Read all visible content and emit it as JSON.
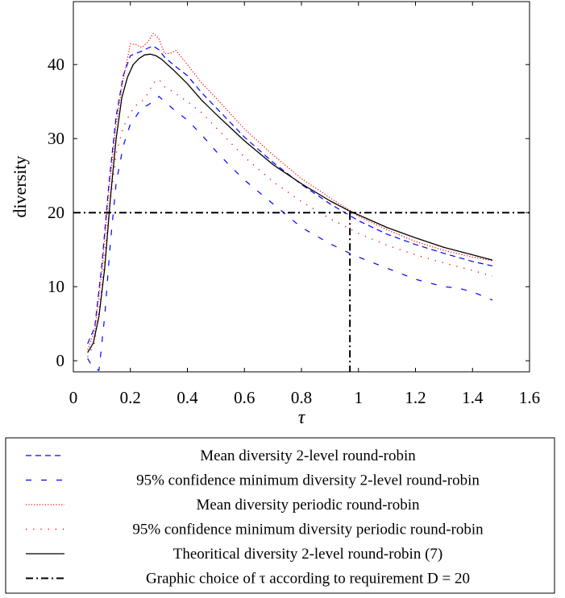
{
  "chart_data": {
    "type": "line",
    "xlabel": "τ",
    "ylabel": "diversity",
    "xlim": [
      0,
      1.6
    ],
    "ylim": [
      -1.5,
      48.5
    ],
    "xticks": [
      "0",
      "0.2",
      "0.4",
      "0.6",
      "0.8",
      "1",
      "1.2",
      "1.4",
      "1.6"
    ],
    "xtick_values": [
      0,
      0.2,
      0.4,
      0.6,
      0.8,
      1,
      1.2,
      1.4,
      1.6
    ],
    "yticks": [
      "0",
      "10",
      "20",
      "30",
      "40"
    ],
    "ytick_values": [
      0,
      10,
      20,
      30,
      40
    ],
    "grid": false,
    "legend_position": "below",
    "series": [
      {
        "name": "Mean diversity 2-level round-robin",
        "color": "#0000ff",
        "style": "dashed",
        "points": [
          [
            0.05,
            2.3
          ],
          [
            0.075,
            4.5
          ],
          [
            0.1,
            13
          ],
          [
            0.125,
            24
          ],
          [
            0.15,
            33
          ],
          [
            0.175,
            38.5
          ],
          [
            0.2,
            41.2
          ],
          [
            0.22,
            41.5
          ],
          [
            0.24,
            41.8
          ],
          [
            0.26,
            42.2
          ],
          [
            0.28,
            42.5
          ],
          [
            0.3,
            42
          ],
          [
            0.32,
            41
          ],
          [
            0.35,
            40
          ],
          [
            0.4,
            38.5
          ],
          [
            0.45,
            36.2
          ],
          [
            0.5,
            34.2
          ],
          [
            0.55,
            32.2
          ],
          [
            0.6,
            30.2
          ],
          [
            0.7,
            26.8
          ],
          [
            0.8,
            23.8
          ],
          [
            0.9,
            21.2
          ],
          [
            0.97,
            19.6
          ],
          [
            1.0,
            18.9
          ],
          [
            1.1,
            17.1
          ],
          [
            1.2,
            15.7
          ],
          [
            1.3,
            14.5
          ],
          [
            1.4,
            13.4
          ],
          [
            1.47,
            12.8
          ]
        ]
      },
      {
        "name": "95% confidence minimum diversity 2-level round-robin",
        "color": "#0000ff",
        "style": "loosely dashed",
        "points": [
          [
            0.05,
            0.3
          ],
          [
            0.07,
            -1.0
          ],
          [
            0.09,
            -1.3
          ],
          [
            0.11,
            6
          ],
          [
            0.13,
            16
          ],
          [
            0.15,
            24
          ],
          [
            0.175,
            29
          ],
          [
            0.2,
            32
          ],
          [
            0.22,
            33
          ],
          [
            0.24,
            34.2
          ],
          [
            0.26,
            34.5
          ],
          [
            0.28,
            35
          ],
          [
            0.3,
            35.7
          ],
          [
            0.32,
            35
          ],
          [
            0.35,
            34
          ],
          [
            0.4,
            32.5
          ],
          [
            0.45,
            30.5
          ],
          [
            0.5,
            28.3
          ],
          [
            0.55,
            26.3
          ],
          [
            0.6,
            24.4
          ],
          [
            0.7,
            21.2
          ],
          [
            0.8,
            18
          ],
          [
            0.9,
            15.8
          ],
          [
            0.97,
            14.5
          ],
          [
            1.0,
            14
          ],
          [
            1.1,
            12.5
          ],
          [
            1.2,
            11
          ],
          [
            1.3,
            10
          ],
          [
            1.35,
            9.8
          ],
          [
            1.4,
            9.3
          ],
          [
            1.47,
            8.2
          ]
        ]
      },
      {
        "name": "Mean diversity periodic round-robin",
        "color": "#ff0000",
        "style": "densely dotted",
        "points": [
          [
            0.05,
            1.5
          ],
          [
            0.075,
            4
          ],
          [
            0.1,
            12
          ],
          [
            0.125,
            23
          ],
          [
            0.15,
            32
          ],
          [
            0.175,
            38
          ],
          [
            0.2,
            42.8
          ],
          [
            0.22,
            42.7
          ],
          [
            0.24,
            42.3
          ],
          [
            0.26,
            43
          ],
          [
            0.28,
            44.2
          ],
          [
            0.3,
            43.5
          ],
          [
            0.32,
            41.5
          ],
          [
            0.34,
            41.5
          ],
          [
            0.36,
            41.9
          ],
          [
            0.4,
            40
          ],
          [
            0.45,
            37.5
          ],
          [
            0.5,
            35.5
          ],
          [
            0.55,
            33.4
          ],
          [
            0.6,
            31.3
          ],
          [
            0.7,
            27.8
          ],
          [
            0.8,
            24.6
          ],
          [
            0.9,
            22
          ],
          [
            0.97,
            20.3
          ],
          [
            1.0,
            19.5
          ],
          [
            1.1,
            17.7
          ],
          [
            1.2,
            16.1
          ],
          [
            1.3,
            14.9
          ],
          [
            1.4,
            14
          ],
          [
            1.47,
            13.5
          ]
        ]
      },
      {
        "name": "95% confidence minimum diversity periodic round-robin",
        "color": "#ff0000",
        "style": "loosely dotted",
        "points": [
          [
            0.05,
            0.5
          ],
          [
            0.075,
            2.5
          ],
          [
            0.1,
            10
          ],
          [
            0.125,
            20
          ],
          [
            0.15,
            28
          ],
          [
            0.175,
            31.5
          ],
          [
            0.2,
            33.5
          ],
          [
            0.22,
            34.5
          ],
          [
            0.24,
            35
          ],
          [
            0.26,
            36
          ],
          [
            0.28,
            37.5
          ],
          [
            0.3,
            38
          ],
          [
            0.32,
            37
          ],
          [
            0.35,
            36.3
          ],
          [
            0.4,
            35
          ],
          [
            0.45,
            33.5
          ],
          [
            0.5,
            31.5
          ],
          [
            0.55,
            29.5
          ],
          [
            0.6,
            27.5
          ],
          [
            0.7,
            24.2
          ],
          [
            0.8,
            21.5
          ],
          [
            0.9,
            19.2
          ],
          [
            0.97,
            17.8
          ],
          [
            1.0,
            17.2
          ],
          [
            1.1,
            15.6
          ],
          [
            1.2,
            14.3
          ],
          [
            1.3,
            13.2
          ],
          [
            1.4,
            12.2
          ],
          [
            1.47,
            11.4
          ]
        ]
      },
      {
        "name": "Theoritical diversity 2-level round-robin (7)",
        "color": "#000000",
        "style": "solid",
        "points": [
          [
            0.05,
            1.1
          ],
          [
            0.07,
            2.4
          ],
          [
            0.09,
            6
          ],
          [
            0.11,
            12.5
          ],
          [
            0.13,
            22
          ],
          [
            0.15,
            30
          ],
          [
            0.17,
            35.5
          ],
          [
            0.19,
            38.3
          ],
          [
            0.21,
            40
          ],
          [
            0.23,
            40.8
          ],
          [
            0.25,
            41.3
          ],
          [
            0.27,
            41.4
          ],
          [
            0.29,
            41.2
          ],
          [
            0.31,
            40.7
          ],
          [
            0.35,
            39.3
          ],
          [
            0.4,
            37.4
          ],
          [
            0.45,
            35.2
          ],
          [
            0.5,
            33.3
          ],
          [
            0.55,
            31.5
          ],
          [
            0.6,
            29.7
          ],
          [
            0.7,
            26.5
          ],
          [
            0.8,
            23.9
          ],
          [
            0.9,
            21.6
          ],
          [
            0.97,
            20.2
          ],
          [
            1.0,
            19.7
          ],
          [
            1.1,
            18
          ],
          [
            1.2,
            16.6
          ],
          [
            1.3,
            15.3
          ],
          [
            1.4,
            14.3
          ],
          [
            1.47,
            13.6
          ]
        ]
      },
      {
        "name": "Graphic choice of τ according to requirement D = 20",
        "color": "#000000",
        "style": "dashdotted",
        "points": [
          [
            0,
            20
          ],
          [
            1.6,
            20
          ]
        ],
        "vertical": {
          "x": 0.97,
          "y0": -1.5,
          "y1": 20
        }
      }
    ]
  }
}
